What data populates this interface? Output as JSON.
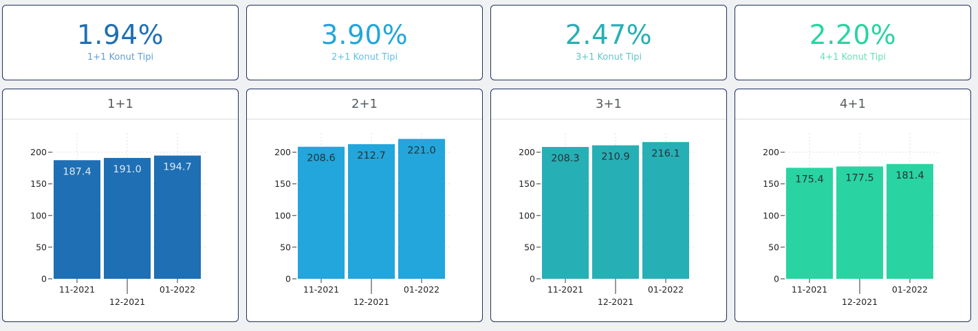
{
  "kpis": [
    {
      "value": "1.94%",
      "label": "1+1 Konut Tipi",
      "color": "#1e6fb4",
      "label_color": "#5f9fd1"
    },
    {
      "value": "3.90%",
      "label": "2+1 Konut Tipi",
      "color": "#22a6db",
      "label_color": "#62c0e6"
    },
    {
      "value": "2.47%",
      "label": "3+1 Konut Tipi",
      "color": "#27afb6",
      "label_color": "#62c5ca"
    },
    {
      "value": "2.20%",
      "label": "4+1 Konut Tipi",
      "color": "#29d4a2",
      "label_color": "#66dfbb"
    }
  ],
  "chart_data": [
    {
      "type": "bar",
      "title": "1+1",
      "categories": [
        "11-2021",
        "12-2021",
        "01-2022"
      ],
      "values": [
        187.4,
        191.0,
        194.7
      ],
      "value_labels": [
        "187.4",
        "191.0",
        "194.7"
      ],
      "ylim": [
        0,
        230
      ],
      "yticks": [
        0,
        50,
        100,
        150,
        200
      ],
      "ytick_labels": [
        "0",
        "50",
        "100",
        "150",
        "200"
      ],
      "bar_color": "#1e6fb4",
      "label_color": "#dce8f4",
      "grid": true
    },
    {
      "type": "bar",
      "title": "2+1",
      "categories": [
        "11-2021",
        "12-2021",
        "01-2022"
      ],
      "values": [
        208.6,
        212.7,
        221.0
      ],
      "value_labels": [
        "208.6",
        "212.7",
        "221.0"
      ],
      "ylim": [
        0,
        230
      ],
      "yticks": [
        0,
        50,
        100,
        150,
        200
      ],
      "ytick_labels": [
        "0",
        "50",
        "100",
        "150",
        "200"
      ],
      "bar_color": "#22a6db",
      "label_color": "#263238",
      "grid": true
    },
    {
      "type": "bar",
      "title": "3+1",
      "categories": [
        "11-2021",
        "12-2021",
        "01-2022"
      ],
      "values": [
        208.3,
        210.9,
        216.1
      ],
      "value_labels": [
        "208.3",
        "210.9",
        "216.1"
      ],
      "ylim": [
        0,
        230
      ],
      "yticks": [
        0,
        50,
        100,
        150,
        200
      ],
      "ytick_labels": [
        "0",
        "50",
        "100",
        "150",
        "200"
      ],
      "bar_color": "#27afb6",
      "label_color": "#263238",
      "grid": true
    },
    {
      "type": "bar",
      "title": "4+1",
      "categories": [
        "11-2021",
        "12-2021",
        "01-2022"
      ],
      "values": [
        175.4,
        177.5,
        181.4
      ],
      "value_labels": [
        "175.4",
        "177.5",
        "181.4"
      ],
      "ylim": [
        0,
        230
      ],
      "yticks": [
        0,
        50,
        100,
        150,
        200
      ],
      "ytick_labels": [
        "0",
        "50",
        "100",
        "150",
        "200"
      ],
      "bar_color": "#29d4a2",
      "label_color": "#263238",
      "grid": true
    }
  ]
}
